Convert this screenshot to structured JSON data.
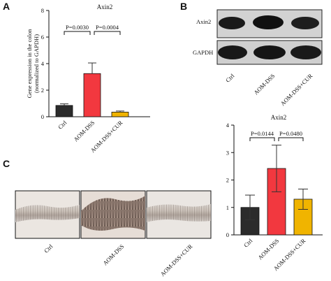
{
  "panels": {
    "a": "A",
    "b": "B",
    "c": "C"
  },
  "blot": {
    "rows": [
      "Axin2",
      "GAPDH"
    ],
    "lanes": [
      "Ctrl",
      "AOM-DSS",
      "AOM-DSS+CUR"
    ]
  },
  "histology": {
    "labels": [
      "Ctrl",
      "AOM-DSS",
      "AOM-DSS+CUR"
    ]
  },
  "colors": {
    "ctrl": "#2b2b2b",
    "dss": "#f2383f",
    "cur": "#f0b400"
  },
  "chart_data": [
    {
      "type": "bar",
      "title": "Axin2",
      "ylabel": "Gene expression in the colon (normalized to GAPDH)",
      "xlabel": "",
      "categories": [
        "Ctrl",
        "AOM-DSS",
        "AOM-DSS+CUR"
      ],
      "values": [
        0.85,
        3.25,
        0.35
      ],
      "errors": [
        0.12,
        0.8,
        0.08
      ],
      "ylim": [
        0,
        8
      ],
      "yticks": [
        0,
        2,
        4,
        6,
        8
      ],
      "comparisons": [
        {
          "from": 0,
          "to": 1,
          "label": "P=0.0030"
        },
        {
          "from": 1,
          "to": 2,
          "label": "P=0.0004"
        }
      ]
    },
    {
      "type": "bar",
      "title": "Axin2",
      "ylabel": "",
      "xlabel": "",
      "categories": [
        "Ctrl",
        "AOM-DSS",
        "AOM-DSS+CUR"
      ],
      "values": [
        1.0,
        2.42,
        1.3
      ],
      "errors": [
        0.45,
        0.85,
        0.37
      ],
      "ylim": [
        0,
        4
      ],
      "yticks": [
        0,
        1,
        2,
        3,
        4
      ],
      "comparisons": [
        {
          "from": 0,
          "to": 1,
          "label": "P=0.0144"
        },
        {
          "from": 1,
          "to": 2,
          "label": "P=0.0480"
        }
      ]
    }
  ]
}
